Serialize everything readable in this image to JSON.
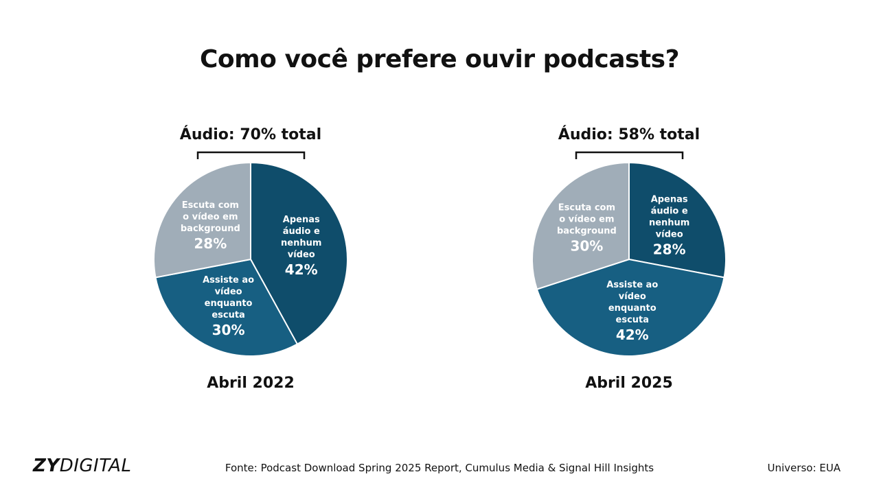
{
  "title": "Como você prefere ouvir podcasts?",
  "colors": {
    "apenas_audio": "#0f4d6b",
    "assiste_video": "#175f82",
    "background_video": "#a0adb8",
    "bracket": "#111111",
    "text_on_slice": "#ffffff"
  },
  "chart_data": [
    {
      "type": "pie",
      "period": "Abril 2022",
      "total_label": "Áudio: 70% total",
      "slices": [
        {
          "label": [
            "Apenas",
            "áudio e",
            "nenhum",
            "vídeo"
          ],
          "value": 42,
          "value_label": "42%",
          "color": "#0f4d6b"
        },
        {
          "label": [
            "Assiste ao",
            "vídeo",
            "enquanto",
            "escuta"
          ],
          "value": 30,
          "value_label": "30%",
          "color": "#175f82"
        },
        {
          "label": [
            "Escuta com",
            "o vídeo em",
            "background"
          ],
          "value": 28,
          "value_label": "28%",
          "color": "#a0adb8"
        }
      ]
    },
    {
      "type": "pie",
      "period": "Abril 2025",
      "total_label": "Áudio: 58% total",
      "slices": [
        {
          "label": [
            "Apenas",
            "áudio e",
            "nenhum",
            "vídeo"
          ],
          "value": 28,
          "value_label": "28%",
          "color": "#0f4d6b"
        },
        {
          "label": [
            "Assiste ao",
            "vídeo",
            "enquanto",
            "escuta"
          ],
          "value": 42,
          "value_label": "42%",
          "color": "#175f82"
        },
        {
          "label": [
            "Escuta com",
            "o vídeo em",
            "background"
          ],
          "value": 30,
          "value_label": "30%",
          "color": "#a0adb8"
        }
      ]
    }
  ],
  "footer": {
    "logo_bold": "ZY",
    "logo_light": "DIGITAL",
    "source": "Fonte: Podcast Download Spring 2025 Report, Cumulus Media & Signal Hill Insights",
    "universe": "Universo: EUA"
  }
}
